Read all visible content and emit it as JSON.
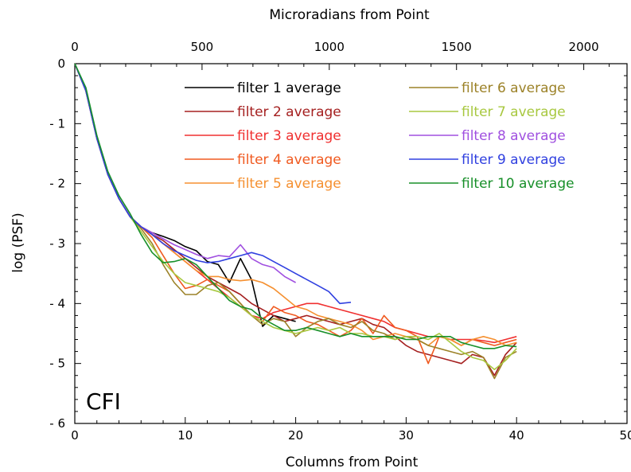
{
  "chart_data": {
    "type": "line",
    "xlabel": "Columns from Point",
    "ylabel": "log (PSF)",
    "top_axis_label": "Microradians from Point",
    "xlim": [
      0,
      50
    ],
    "ylim": [
      -6,
      0
    ],
    "top_xlim": [
      0,
      2170
    ],
    "x_ticks": [
      "0",
      "10",
      "20",
      "30",
      "40",
      "50"
    ],
    "x_tick_values": [
      0,
      10,
      20,
      30,
      40,
      50
    ],
    "y_ticks": [
      "0",
      "- 1",
      "- 2",
      "- 3",
      "- 4",
      "- 5",
      "- 6"
    ],
    "y_tick_values": [
      0,
      -1,
      -2,
      -3,
      -4,
      -5,
      -6
    ],
    "top_ticks": [
      "0",
      "500",
      "1000",
      "1500",
      "2000"
    ],
    "top_tick_values": [
      0,
      500,
      1000,
      1500,
      2000
    ],
    "annotation": "CFI",
    "grid": false,
    "legend_position": "top-right",
    "series": [
      {
        "name": "filter  1  average",
        "color": "#000000",
        "x": [
          0,
          1,
          2,
          3,
          4,
          5,
          6,
          7,
          8,
          9,
          10,
          11,
          12,
          13,
          14,
          15,
          16,
          17,
          18,
          19,
          20
        ],
        "y": [
          0,
          -0.45,
          -1.25,
          -1.85,
          -2.25,
          -2.55,
          -2.72,
          -2.82,
          -2.88,
          -2.95,
          -3.05,
          -3.12,
          -3.3,
          -3.35,
          -3.65,
          -3.25,
          -3.6,
          -4.38,
          -4.2,
          -4.25,
          -4.3
        ]
      },
      {
        "name": "filter  2  average",
        "color": "#a52020",
        "x": [
          0,
          1,
          2,
          3,
          4,
          5,
          6,
          7,
          8,
          9,
          10,
          11,
          12,
          13,
          14,
          15,
          16,
          17,
          18,
          19,
          20,
          21,
          22,
          23,
          24,
          25,
          26,
          27,
          28,
          29,
          30,
          31,
          32,
          33,
          34,
          35,
          36,
          37,
          38,
          39,
          40
        ],
        "y": [
          0,
          -0.45,
          -1.25,
          -1.85,
          -2.25,
          -2.55,
          -2.72,
          -2.85,
          -2.95,
          -3.1,
          -3.25,
          -3.4,
          -3.55,
          -3.65,
          -3.75,
          -3.85,
          -4.0,
          -4.1,
          -4.2,
          -4.3,
          -4.25,
          -4.2,
          -4.25,
          -4.3,
          -4.35,
          -4.3,
          -4.25,
          -4.35,
          -4.4,
          -4.55,
          -4.7,
          -4.8,
          -4.85,
          -4.9,
          -4.95,
          -5.0,
          -4.85,
          -4.9,
          -5.2,
          -4.85,
          -4.65
        ]
      },
      {
        "name": "filter  3  average",
        "color": "#f03030",
        "x": [
          0,
          1,
          2,
          3,
          4,
          5,
          6,
          7,
          8,
          9,
          10,
          11,
          12,
          13,
          14,
          15,
          16,
          17,
          18,
          19,
          20,
          21,
          22,
          23,
          24,
          25,
          26,
          27,
          28,
          29,
          30,
          31,
          32,
          33,
          34,
          35,
          36,
          37,
          38,
          39,
          40
        ],
        "y": [
          0,
          -0.45,
          -1.25,
          -1.85,
          -2.25,
          -2.55,
          -2.72,
          -2.85,
          -3.0,
          -3.15,
          -3.3,
          -3.45,
          -3.6,
          -3.75,
          -3.9,
          -4.05,
          -4.2,
          -4.25,
          -4.15,
          -4.1,
          -4.05,
          -4.0,
          -4.0,
          -4.05,
          -4.1,
          -4.15,
          -4.2,
          -4.25,
          -4.3,
          -4.4,
          -4.45,
          -4.5,
          -4.55,
          -4.55,
          -4.6,
          -4.6,
          -4.6,
          -4.62,
          -4.65,
          -4.6,
          -4.55
        ]
      },
      {
        "name": "filter  4  average",
        "color": "#f05a20",
        "x": [
          0,
          1,
          2,
          3,
          4,
          5,
          6,
          7,
          8,
          9,
          10,
          11,
          12,
          13,
          14,
          15,
          16,
          17,
          18,
          19,
          20,
          21,
          22,
          23,
          24,
          25,
          26,
          27,
          28,
          29,
          30,
          31,
          32,
          33,
          34,
          35,
          36,
          37,
          38,
          39,
          40
        ],
        "y": [
          0,
          -0.45,
          -1.25,
          -1.85,
          -2.25,
          -2.55,
          -2.72,
          -2.9,
          -3.2,
          -3.5,
          -3.75,
          -3.7,
          -3.6,
          -3.7,
          -3.8,
          -4.0,
          -4.2,
          -4.3,
          -4.05,
          -4.15,
          -4.2,
          -4.3,
          -4.35,
          -4.45,
          -4.55,
          -4.45,
          -4.25,
          -4.5,
          -4.2,
          -4.4,
          -4.45,
          -4.55,
          -5.0,
          -4.55,
          -4.6,
          -4.7,
          -4.6,
          -4.65,
          -4.7,
          -4.65,
          -4.6
        ]
      },
      {
        "name": "filter  5  average",
        "color": "#f59030",
        "x": [
          0,
          1,
          2,
          3,
          4,
          5,
          6,
          7,
          8,
          9,
          10,
          11,
          12,
          13,
          14,
          15,
          16,
          17,
          18,
          19,
          20,
          21,
          22,
          23,
          24,
          25,
          26,
          27,
          28,
          29,
          30,
          31,
          32,
          33,
          34,
          35,
          36,
          37,
          38,
          39,
          40
        ],
        "y": [
          0,
          -0.45,
          -1.25,
          -1.85,
          -2.25,
          -2.55,
          -2.72,
          -2.85,
          -3.0,
          -3.15,
          -3.3,
          -3.45,
          -3.55,
          -3.55,
          -3.6,
          -3.62,
          -3.6,
          -3.65,
          -3.75,
          -3.9,
          -4.05,
          -4.1,
          -4.2,
          -4.25,
          -4.3,
          -4.35,
          -4.45,
          -4.6,
          -4.55,
          -4.5,
          -4.55,
          -4.6,
          -4.7,
          -4.55,
          -4.6,
          -4.7,
          -4.6,
          -4.55,
          -4.6,
          -4.7,
          -4.65
        ]
      },
      {
        "name": "filter  6  average",
        "color": "#9c8228",
        "x": [
          0,
          1,
          2,
          3,
          4,
          5,
          6,
          7,
          8,
          9,
          10,
          11,
          12,
          13,
          14,
          15,
          16,
          17,
          18,
          19,
          20,
          21,
          22,
          23,
          24,
          25,
          26,
          27,
          28,
          29,
          30,
          31,
          32,
          33,
          34,
          35,
          36,
          37,
          38,
          39,
          40
        ],
        "y": [
          0,
          -0.45,
          -1.25,
          -1.85,
          -2.25,
          -2.55,
          -2.75,
          -3.0,
          -3.35,
          -3.65,
          -3.85,
          -3.85,
          -3.7,
          -3.65,
          -3.8,
          -4.0,
          -4.2,
          -4.35,
          -4.25,
          -4.3,
          -4.55,
          -4.4,
          -4.3,
          -4.25,
          -4.35,
          -4.4,
          -4.3,
          -4.45,
          -4.5,
          -4.6,
          -4.55,
          -4.6,
          -4.7,
          -4.75,
          -4.8,
          -4.85,
          -4.8,
          -4.9,
          -5.25,
          -4.9,
          -4.8
        ]
      },
      {
        "name": "filter  7  average",
        "color": "#a8c840",
        "x": [
          0,
          1,
          2,
          3,
          4,
          5,
          6,
          7,
          8,
          9,
          10,
          11,
          12,
          13,
          14,
          15,
          16,
          17,
          18,
          19,
          20,
          21,
          22,
          23,
          24,
          25,
          26,
          27,
          28,
          29,
          30,
          31,
          32,
          33,
          34,
          35,
          36,
          37,
          38,
          39,
          40
        ],
        "y": [
          0,
          -0.45,
          -1.25,
          -1.85,
          -2.25,
          -2.55,
          -2.8,
          -3.05,
          -3.3,
          -3.5,
          -3.65,
          -3.7,
          -3.75,
          -3.8,
          -3.9,
          -4.05,
          -4.2,
          -4.3,
          -4.4,
          -4.45,
          -4.5,
          -4.45,
          -4.4,
          -4.45,
          -4.4,
          -4.5,
          -4.5,
          -4.55,
          -4.55,
          -4.6,
          -4.55,
          -4.55,
          -4.6,
          -4.5,
          -4.65,
          -4.8,
          -4.9,
          -4.95,
          -5.1,
          -4.95,
          -4.75
        ]
      },
      {
        "name": "filter  8  average",
        "color": "#a050e0",
        "x": [
          0,
          1,
          2,
          3,
          4,
          5,
          6,
          7,
          8,
          9,
          10,
          11,
          12,
          13,
          14,
          15,
          16,
          17,
          18,
          19,
          20
        ],
        "y": [
          0,
          -0.45,
          -1.25,
          -1.85,
          -2.25,
          -2.55,
          -2.72,
          -2.82,
          -2.92,
          -3.02,
          -3.1,
          -3.18,
          -3.25,
          -3.2,
          -3.22,
          -3.02,
          -3.25,
          -3.35,
          -3.4,
          -3.55,
          -3.65
        ]
      },
      {
        "name": "filter  9  average",
        "color": "#3040e0",
        "x": [
          0,
          1,
          2,
          3,
          4,
          5,
          6,
          7,
          8,
          9,
          10,
          11,
          12,
          13,
          14,
          15,
          16,
          17,
          18,
          19,
          20,
          21,
          22,
          23,
          24,
          25
        ],
        "y": [
          0,
          -0.45,
          -1.25,
          -1.85,
          -2.25,
          -2.55,
          -2.72,
          -2.85,
          -3.0,
          -3.12,
          -3.2,
          -3.28,
          -3.32,
          -3.3,
          -3.25,
          -3.2,
          -3.15,
          -3.2,
          -3.3,
          -3.4,
          -3.5,
          -3.6,
          -3.7,
          -3.8,
          -4.0,
          -3.98
        ]
      },
      {
        "name": "filter  10  average",
        "color": "#18902a",
        "x": [
          0,
          1,
          2,
          3,
          4,
          5,
          6,
          7,
          8,
          9,
          10,
          11,
          12,
          13,
          14,
          15,
          16,
          17,
          18,
          19,
          20,
          21,
          22,
          23,
          24,
          25,
          26,
          27,
          28,
          29,
          30,
          31,
          32,
          33,
          34,
          35,
          36,
          37,
          38,
          39,
          40
        ],
        "y": [
          0,
          -0.4,
          -1.2,
          -1.8,
          -2.2,
          -2.5,
          -2.85,
          -3.15,
          -3.32,
          -3.3,
          -3.25,
          -3.35,
          -3.55,
          -3.75,
          -3.95,
          -4.05,
          -4.1,
          -4.25,
          -4.35,
          -4.45,
          -4.45,
          -4.4,
          -4.45,
          -4.5,
          -4.55,
          -4.5,
          -4.55,
          -4.55,
          -4.55,
          -4.55,
          -4.6,
          -4.6,
          -4.55,
          -4.55,
          -4.55,
          -4.65,
          -4.7,
          -4.75,
          -4.75,
          -4.7,
          -4.72
        ]
      }
    ]
  }
}
